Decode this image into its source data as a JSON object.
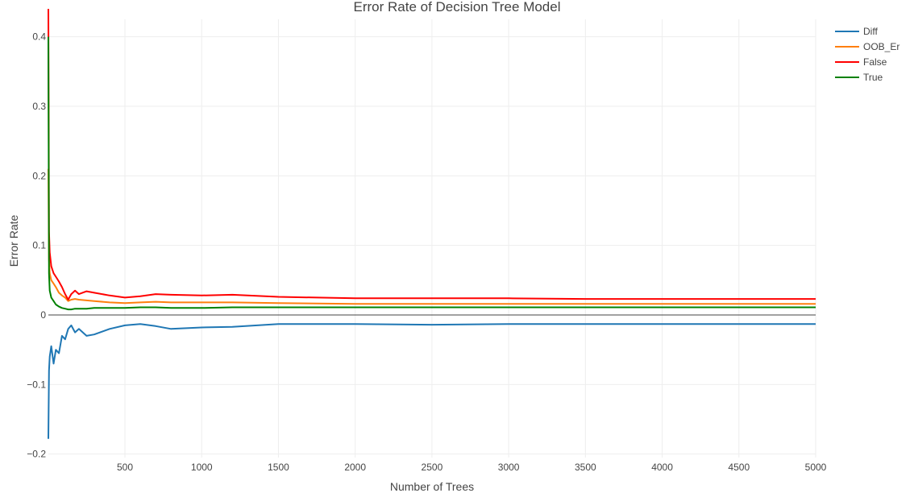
{
  "chart_data": {
    "type": "line",
    "title": "Error Rate of Decision Tree Model",
    "xlabel": "Number of Trees",
    "ylabel": "Error Rate",
    "xlim": [
      1,
      5000
    ],
    "ylim": [
      -0.205,
      0.425
    ],
    "x_ticks": [
      500,
      1000,
      1500,
      2000,
      2500,
      3000,
      3500,
      4000,
      4500,
      5000
    ],
    "y_ticks": [
      -0.2,
      -0.1,
      0,
      0.1,
      0.2,
      0.3,
      0.4
    ],
    "y_tick_labels": [
      "−0.2",
      "−0.1",
      "0",
      "0.1",
      "0.2",
      "0.3",
      "0.4"
    ],
    "grid": true,
    "legend_position": "top-right",
    "series": [
      {
        "name": "Diff",
        "color": "#1f77b4",
        "x": [
          1,
          5,
          10,
          20,
          35,
          50,
          70,
          90,
          110,
          130,
          150,
          175,
          200,
          250,
          300,
          400,
          500,
          600,
          700,
          800,
          1000,
          1200,
          1500,
          2000,
          2500,
          3000,
          3500,
          4000,
          4500,
          5000
        ],
        "y": [
          -0.178,
          -0.08,
          -0.06,
          -0.045,
          -0.07,
          -0.05,
          -0.055,
          -0.03,
          -0.035,
          -0.02,
          -0.015,
          -0.025,
          -0.02,
          -0.03,
          -0.028,
          -0.02,
          -0.015,
          -0.013,
          -0.016,
          -0.02,
          -0.018,
          -0.017,
          -0.013,
          -0.013,
          -0.014,
          -0.013,
          -0.013,
          -0.013,
          -0.013,
          -0.013
        ]
      },
      {
        "name": "OOB_Er",
        "color": "#ff7f0e",
        "x": [
          1,
          5,
          10,
          20,
          35,
          50,
          70,
          90,
          110,
          130,
          150,
          175,
          200,
          250,
          300,
          400,
          500,
          600,
          700,
          800,
          1000,
          1200,
          1500,
          2000,
          2500,
          3000,
          3500,
          4000,
          4500,
          5000
        ],
        "y": [
          0.21,
          0.08,
          0.06,
          0.05,
          0.045,
          0.04,
          0.032,
          0.028,
          0.025,
          0.02,
          0.022,
          0.023,
          0.022,
          0.021,
          0.02,
          0.018,
          0.017,
          0.018,
          0.019,
          0.018,
          0.018,
          0.018,
          0.017,
          0.016,
          0.016,
          0.016,
          0.016,
          0.016,
          0.016,
          0.016
        ]
      },
      {
        "name": "False",
        "color": "#ff0000",
        "x": [
          1,
          5,
          10,
          20,
          35,
          50,
          70,
          90,
          110,
          130,
          150,
          175,
          200,
          250,
          300,
          400,
          500,
          600,
          700,
          800,
          1000,
          1200,
          1500,
          2000,
          2500,
          3000,
          3500,
          4000,
          4500,
          5000
        ],
        "y": [
          0.44,
          0.12,
          0.09,
          0.07,
          0.06,
          0.055,
          0.048,
          0.04,
          0.03,
          0.022,
          0.03,
          0.035,
          0.03,
          0.034,
          0.032,
          0.028,
          0.025,
          0.027,
          0.03,
          0.029,
          0.028,
          0.029,
          0.026,
          0.024,
          0.024,
          0.024,
          0.023,
          0.023,
          0.023,
          0.023
        ]
      },
      {
        "name": "True",
        "color": "#008000",
        "x": [
          1,
          5,
          10,
          20,
          35,
          50,
          70,
          90,
          110,
          130,
          150,
          175,
          200,
          250,
          300,
          400,
          500,
          600,
          700,
          800,
          1000,
          1200,
          1500,
          2000,
          2500,
          3000,
          3500,
          4000,
          4500,
          5000
        ],
        "y": [
          0.4,
          0.06,
          0.035,
          0.025,
          0.02,
          0.015,
          0.012,
          0.01,
          0.009,
          0.008,
          0.008,
          0.009,
          0.009,
          0.009,
          0.01,
          0.01,
          0.01,
          0.011,
          0.011,
          0.01,
          0.01,
          0.011,
          0.011,
          0.011,
          0.011,
          0.011,
          0.011,
          0.011,
          0.011,
          0.011
        ]
      }
    ]
  }
}
